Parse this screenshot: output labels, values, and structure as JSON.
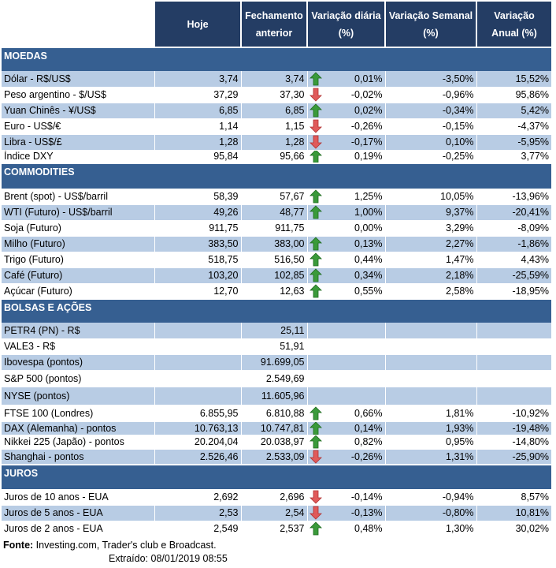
{
  "header": {
    "col_label": "",
    "hoje": "Hoje",
    "fechamento": "Fechamento anterior",
    "diaria": "Variação diária (%)",
    "semanal": "Variação Semanal (%)",
    "anual": "Variação Anual (%)"
  },
  "colors": {
    "header_bg": "#243d64",
    "section_bg": "#365f91",
    "shade_bg": "#b8cce4",
    "up_arrow": "#3a9a3a",
    "down_arrow": "#e05a5a"
  },
  "sections": [
    {
      "title": "MOEDAS",
      "rows": [
        {
          "label": "Dólar - R$/US$",
          "hoje": "3,74",
          "fech": "3,74",
          "arrow": "up",
          "diaria": "0,01%",
          "semanal": "-3,50%",
          "anual": "15,52%"
        },
        {
          "label": "Peso argentino - $/US$",
          "hoje": "37,29",
          "fech": "37,30",
          "arrow": "down",
          "diaria": "-0,02%",
          "semanal": "-0,96%",
          "anual": "95,86%"
        },
        {
          "label": "Yuan Chinês - ¥/US$",
          "hoje": "6,85",
          "fech": "6,85",
          "arrow": "up",
          "diaria": "0,02%",
          "semanal": "-0,34%",
          "anual": "5,42%"
        },
        {
          "label": "Euro - US$/€",
          "hoje": "1,14",
          "fech": "1,15",
          "arrow": "down",
          "diaria": "-0,26%",
          "semanal": "-0,15%",
          "anual": "-4,37%"
        },
        {
          "label": "Libra - US$/£",
          "hoje": "1,28",
          "fech": "1,28",
          "arrow": "down",
          "diaria": "-0,17%",
          "semanal": "0,10%",
          "anual": "-5,95%"
        },
        {
          "label": "Índice DXY",
          "hoje": "95,84",
          "fech": "95,66",
          "arrow": "up",
          "diaria": "0,19%",
          "semanal": "-0,25%",
          "anual": "3,77%"
        }
      ]
    },
    {
      "title": "COMMODITIES",
      "rows": [
        {
          "label": "Brent (spot) - US$/barril",
          "hoje": "58,39",
          "fech": "57,67",
          "arrow": "up",
          "diaria": "1,25%",
          "semanal": "10,05%",
          "anual": "-13,96%"
        },
        {
          "label": "WTI (Futuro) - US$/barril",
          "hoje": "49,26",
          "fech": "48,77",
          "arrow": "up",
          "diaria": "1,00%",
          "semanal": "9,37%",
          "anual": "-20,41%"
        },
        {
          "label": "Soja (Futuro)",
          "hoje": "911,75",
          "fech": "911,75",
          "arrow": "",
          "diaria": "0,00%",
          "semanal": "3,29%",
          "anual": "-8,09%"
        },
        {
          "label": "Milho (Futuro)",
          "hoje": "383,50",
          "fech": "383,00",
          "arrow": "up",
          "diaria": "0,13%",
          "semanal": "2,27%",
          "anual": "-1,86%"
        },
        {
          "label": "Trigo (Futuro)",
          "hoje": "518,75",
          "fech": "516,50",
          "arrow": "up",
          "diaria": "0,44%",
          "semanal": "1,47%",
          "anual": "4,43%"
        },
        {
          "label": "Café (Futuro)",
          "hoje": "103,20",
          "fech": "102,85",
          "arrow": "up",
          "diaria": "0,34%",
          "semanal": "2,18%",
          "anual": "-25,59%"
        },
        {
          "label": "Açúcar (Futuro)",
          "hoje": "12,70",
          "fech": "12,63",
          "arrow": "up",
          "diaria": "0,55%",
          "semanal": "2,58%",
          "anual": "-18,95%"
        }
      ]
    },
    {
      "title": "BOLSAS E AÇÕES",
      "rows": [
        {
          "label": "PETR4 (PN) - R$",
          "hoje": "",
          "fech": "25,11",
          "arrow": "",
          "diaria": "",
          "semanal": "",
          "anual": ""
        },
        {
          "label": "VALE3 - R$",
          "hoje": "",
          "fech": "51,91",
          "arrow": "",
          "diaria": "",
          "semanal": "",
          "anual": ""
        },
        {
          "label": "Ibovespa (pontos)",
          "hoje": "",
          "fech": "91.699,05",
          "arrow": "",
          "diaria": "",
          "semanal": "",
          "anual": ""
        },
        {
          "label": "S&P 500 (pontos)",
          "hoje": "",
          "fech": "2.549,69",
          "arrow": "",
          "diaria": "",
          "semanal": "",
          "anual": ""
        },
        {
          "label": "NYSE (pontos)",
          "hoje": "",
          "fech": "11.605,96",
          "arrow": "",
          "diaria": "",
          "semanal": "",
          "anual": ""
        },
        {
          "label": "FTSE 100 (Londres)",
          "hoje": "6.855,95",
          "fech": "6.810,88",
          "arrow": "up",
          "diaria": "0,66%",
          "semanal": "1,81%",
          "anual": "-10,92%"
        },
        {
          "label": "DAX (Alemanha) - pontos",
          "hoje": "10.763,13",
          "fech": "10.747,81",
          "arrow": "up",
          "diaria": "0,14%",
          "semanal": "1,93%",
          "anual": "-19,48%"
        },
        {
          "label": "Nikkei 225 (Japão) - pontos",
          "hoje": "20.204,04",
          "fech": "20.038,97",
          "arrow": "up",
          "diaria": "0,82%",
          "semanal": "0,95%",
          "anual": "-14,80%"
        },
        {
          "label": "Shanghai - pontos",
          "hoje": "2.526,46",
          "fech": "2.533,09",
          "arrow": "down",
          "diaria": "-0,26%",
          "semanal": "1,31%",
          "anual": "-25,90%"
        }
      ]
    },
    {
      "title": "JUROS",
      "rows": [
        {
          "label": "Juros de 10 anos - EUA",
          "hoje": "2,692",
          "fech": "2,696",
          "arrow": "down",
          "diaria": "-0,14%",
          "semanal": "-0,94%",
          "anual": "8,57%"
        },
        {
          "label": "Juros de 5 anos - EUA",
          "hoje": "2,53",
          "fech": "2,54",
          "arrow": "down",
          "diaria": "-0,13%",
          "semanal": "-0,80%",
          "anual": "10,81%"
        },
        {
          "label": "Juros de 2 anos - EUA",
          "hoje": "2,549",
          "fech": "2,537",
          "arrow": "up",
          "diaria": "0,48%",
          "semanal": "1,30%",
          "anual": "30,02%"
        }
      ]
    }
  ],
  "footer": {
    "fonte_label": "Fonte:",
    "fonte_text": " Investing.com, Trader's club e Broadcast.",
    "extraido": "Extraído:  08/01/2019 08:55"
  }
}
